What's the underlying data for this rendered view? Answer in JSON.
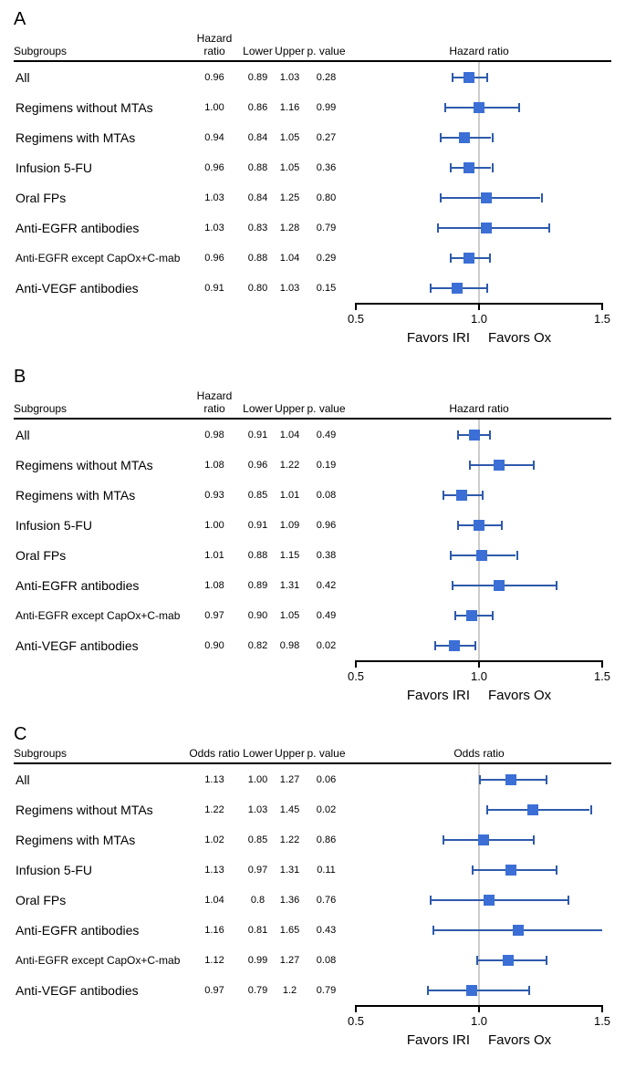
{
  "panels": [
    {
      "label": "A",
      "ratio_header": "Hazard ratio",
      "plot_header": "Hazard ratio",
      "xlim": [
        0.5,
        1.5
      ],
      "xticks": [
        0.5,
        1.0,
        1.5
      ],
      "favor_left": "Favors IRI",
      "favor_right": "Favors Ox",
      "colors": {
        "line": "#2e5aac",
        "point": "#3b6fd6",
        "ref": "#cccccc"
      },
      "rows": [
        {
          "label": "All",
          "hr": "0.96",
          "lo": "0.89",
          "up": "1.03",
          "p": "0.28",
          "v": 0.96,
          "l": 0.89,
          "u": 1.03
        },
        {
          "label": "Regimens without MTAs",
          "hr": "1.00",
          "lo": "0.86",
          "up": "1.16",
          "p": "0.99",
          "v": 1.0,
          "l": 0.86,
          "u": 1.16
        },
        {
          "label": "Regimens with MTAs",
          "hr": "0.94",
          "lo": "0.84",
          "up": "1.05",
          "p": "0.27",
          "v": 0.94,
          "l": 0.84,
          "u": 1.05
        },
        {
          "label": "Infusion 5-FU",
          "hr": "0.96",
          "lo": "0.88",
          "up": "1.05",
          "p": "0.36",
          "v": 0.96,
          "l": 0.88,
          "u": 1.05
        },
        {
          "label": "Oral FPs",
          "hr": "1.03",
          "lo": "0.84",
          "up": "1.25",
          "p": "0.80",
          "v": 1.03,
          "l": 0.84,
          "u": 1.25
        },
        {
          "label": "Anti-EGFR antibodies",
          "hr": "1.03",
          "lo": "0.83",
          "up": "1.28",
          "p": "0.79",
          "v": 1.03,
          "l": 0.83,
          "u": 1.28
        },
        {
          "label": "Anti-EGFR except CapOx+C-mab",
          "hr": "0.96",
          "lo": "0.88",
          "up": "1.04",
          "p": "0.29",
          "v": 0.96,
          "l": 0.88,
          "u": 1.04,
          "small": true
        },
        {
          "label": "Anti-VEGF antibodies",
          "hr": "0.91",
          "lo": "0.80",
          "up": "1.03",
          "p": "0.15",
          "v": 0.91,
          "l": 0.8,
          "u": 1.03
        }
      ]
    },
    {
      "label": "B",
      "ratio_header": "Hazard ratio",
      "plot_header": "Hazard ratio",
      "xlim": [
        0.5,
        1.5
      ],
      "xticks": [
        0.5,
        1.0,
        1.5
      ],
      "favor_left": "Favors IRI",
      "favor_right": "Favors Ox",
      "colors": {
        "line": "#2e5aac",
        "point": "#3b6fd6",
        "ref": "#cccccc"
      },
      "rows": [
        {
          "label": "All",
          "hr": "0.98",
          "lo": "0.91",
          "up": "1.04",
          "p": "0.49",
          "v": 0.98,
          "l": 0.91,
          "u": 1.04
        },
        {
          "label": "Regimens without MTAs",
          "hr": "1.08",
          "lo": "0.96",
          "up": "1.22",
          "p": "0.19",
          "v": 1.08,
          "l": 0.96,
          "u": 1.22
        },
        {
          "label": "Regimens with MTAs",
          "hr": "0.93",
          "lo": "0.85",
          "up": "1.01",
          "p": "0.08",
          "v": 0.93,
          "l": 0.85,
          "u": 1.01
        },
        {
          "label": "Infusion 5-FU",
          "hr": "1.00",
          "lo": "0.91",
          "up": "1.09",
          "p": "0.96",
          "v": 1.0,
          "l": 0.91,
          "u": 1.09
        },
        {
          "label": "Oral FPs",
          "hr": "1.01",
          "lo": "0.88",
          "up": "1.15",
          "p": "0.38",
          "v": 1.01,
          "l": 0.88,
          "u": 1.15
        },
        {
          "label": "Anti-EGFR antibodies",
          "hr": "1.08",
          "lo": "0.89",
          "up": "1.31",
          "p": "0.42",
          "v": 1.08,
          "l": 0.89,
          "u": 1.31
        },
        {
          "label": "Anti-EGFR except CapOx+C-mab",
          "hr": "0.97",
          "lo": "0.90",
          "up": "1.05",
          "p": "0.49",
          "v": 0.97,
          "l": 0.9,
          "u": 1.05,
          "small": true
        },
        {
          "label": "Anti-VEGF antibodies",
          "hr": "0.90",
          "lo": "0.82",
          "up": "0.98",
          "p": "0.02",
          "v": 0.9,
          "l": 0.82,
          "u": 0.98
        }
      ]
    },
    {
      "label": "C",
      "ratio_header": "Odds ratio",
      "plot_header": "Odds ratio",
      "xlim": [
        0.5,
        1.5
      ],
      "xticks": [
        0.5,
        1.0,
        1.5
      ],
      "favor_left": "Favors IRI",
      "favor_right": "Favors Ox",
      "colors": {
        "line": "#2e5aac",
        "point": "#3b6fd6",
        "ref": "#cccccc"
      },
      "rows": [
        {
          "label": "All",
          "hr": "1.13",
          "lo": "1.00",
          "up": "1.27",
          "p": "0.06",
          "v": 1.13,
          "l": 1.0,
          "u": 1.27
        },
        {
          "label": "Regimens without MTAs",
          "hr": "1.22",
          "lo": "1.03",
          "up": "1.45",
          "p": "0.02",
          "v": 1.22,
          "l": 1.03,
          "u": 1.45
        },
        {
          "label": "Regimens with MTAs",
          "hr": "1.02",
          "lo": "0.85",
          "up": "1.22",
          "p": "0.86",
          "v": 1.02,
          "l": 0.85,
          "u": 1.22
        },
        {
          "label": "Infusion 5-FU",
          "hr": "1.13",
          "lo": "0.97",
          "up": "1.31",
          "p": "0.11",
          "v": 1.13,
          "l": 0.97,
          "u": 1.31
        },
        {
          "label": "Oral FPs",
          "hr": "1.04",
          "lo": "0.8",
          "up": "1.36",
          "p": "0.76",
          "v": 1.04,
          "l": 0.8,
          "u": 1.36
        },
        {
          "label": "Anti-EGFR antibodies",
          "hr": "1.16",
          "lo": "0.81",
          "up": "1.65",
          "p": "0.43",
          "v": 1.16,
          "l": 0.81,
          "u": 1.65
        },
        {
          "label": "Anti-EGFR except CapOx+C-mab",
          "hr": "1.12",
          "lo": "0.99",
          "up": "1.27",
          "p": "0.08",
          "v": 1.12,
          "l": 0.99,
          "u": 1.27,
          "small": true
        },
        {
          "label": "Anti-VEGF antibodies",
          "hr": "0.97",
          "lo": "0.79",
          "up": "1.2",
          "p": "0.79",
          "v": 0.97,
          "l": 0.79,
          "u": 1.2
        }
      ]
    }
  ],
  "headers": {
    "subgroups": "Subgroups",
    "lower": "Lower",
    "upper": "Upper",
    "pvalue": "p. value"
  }
}
